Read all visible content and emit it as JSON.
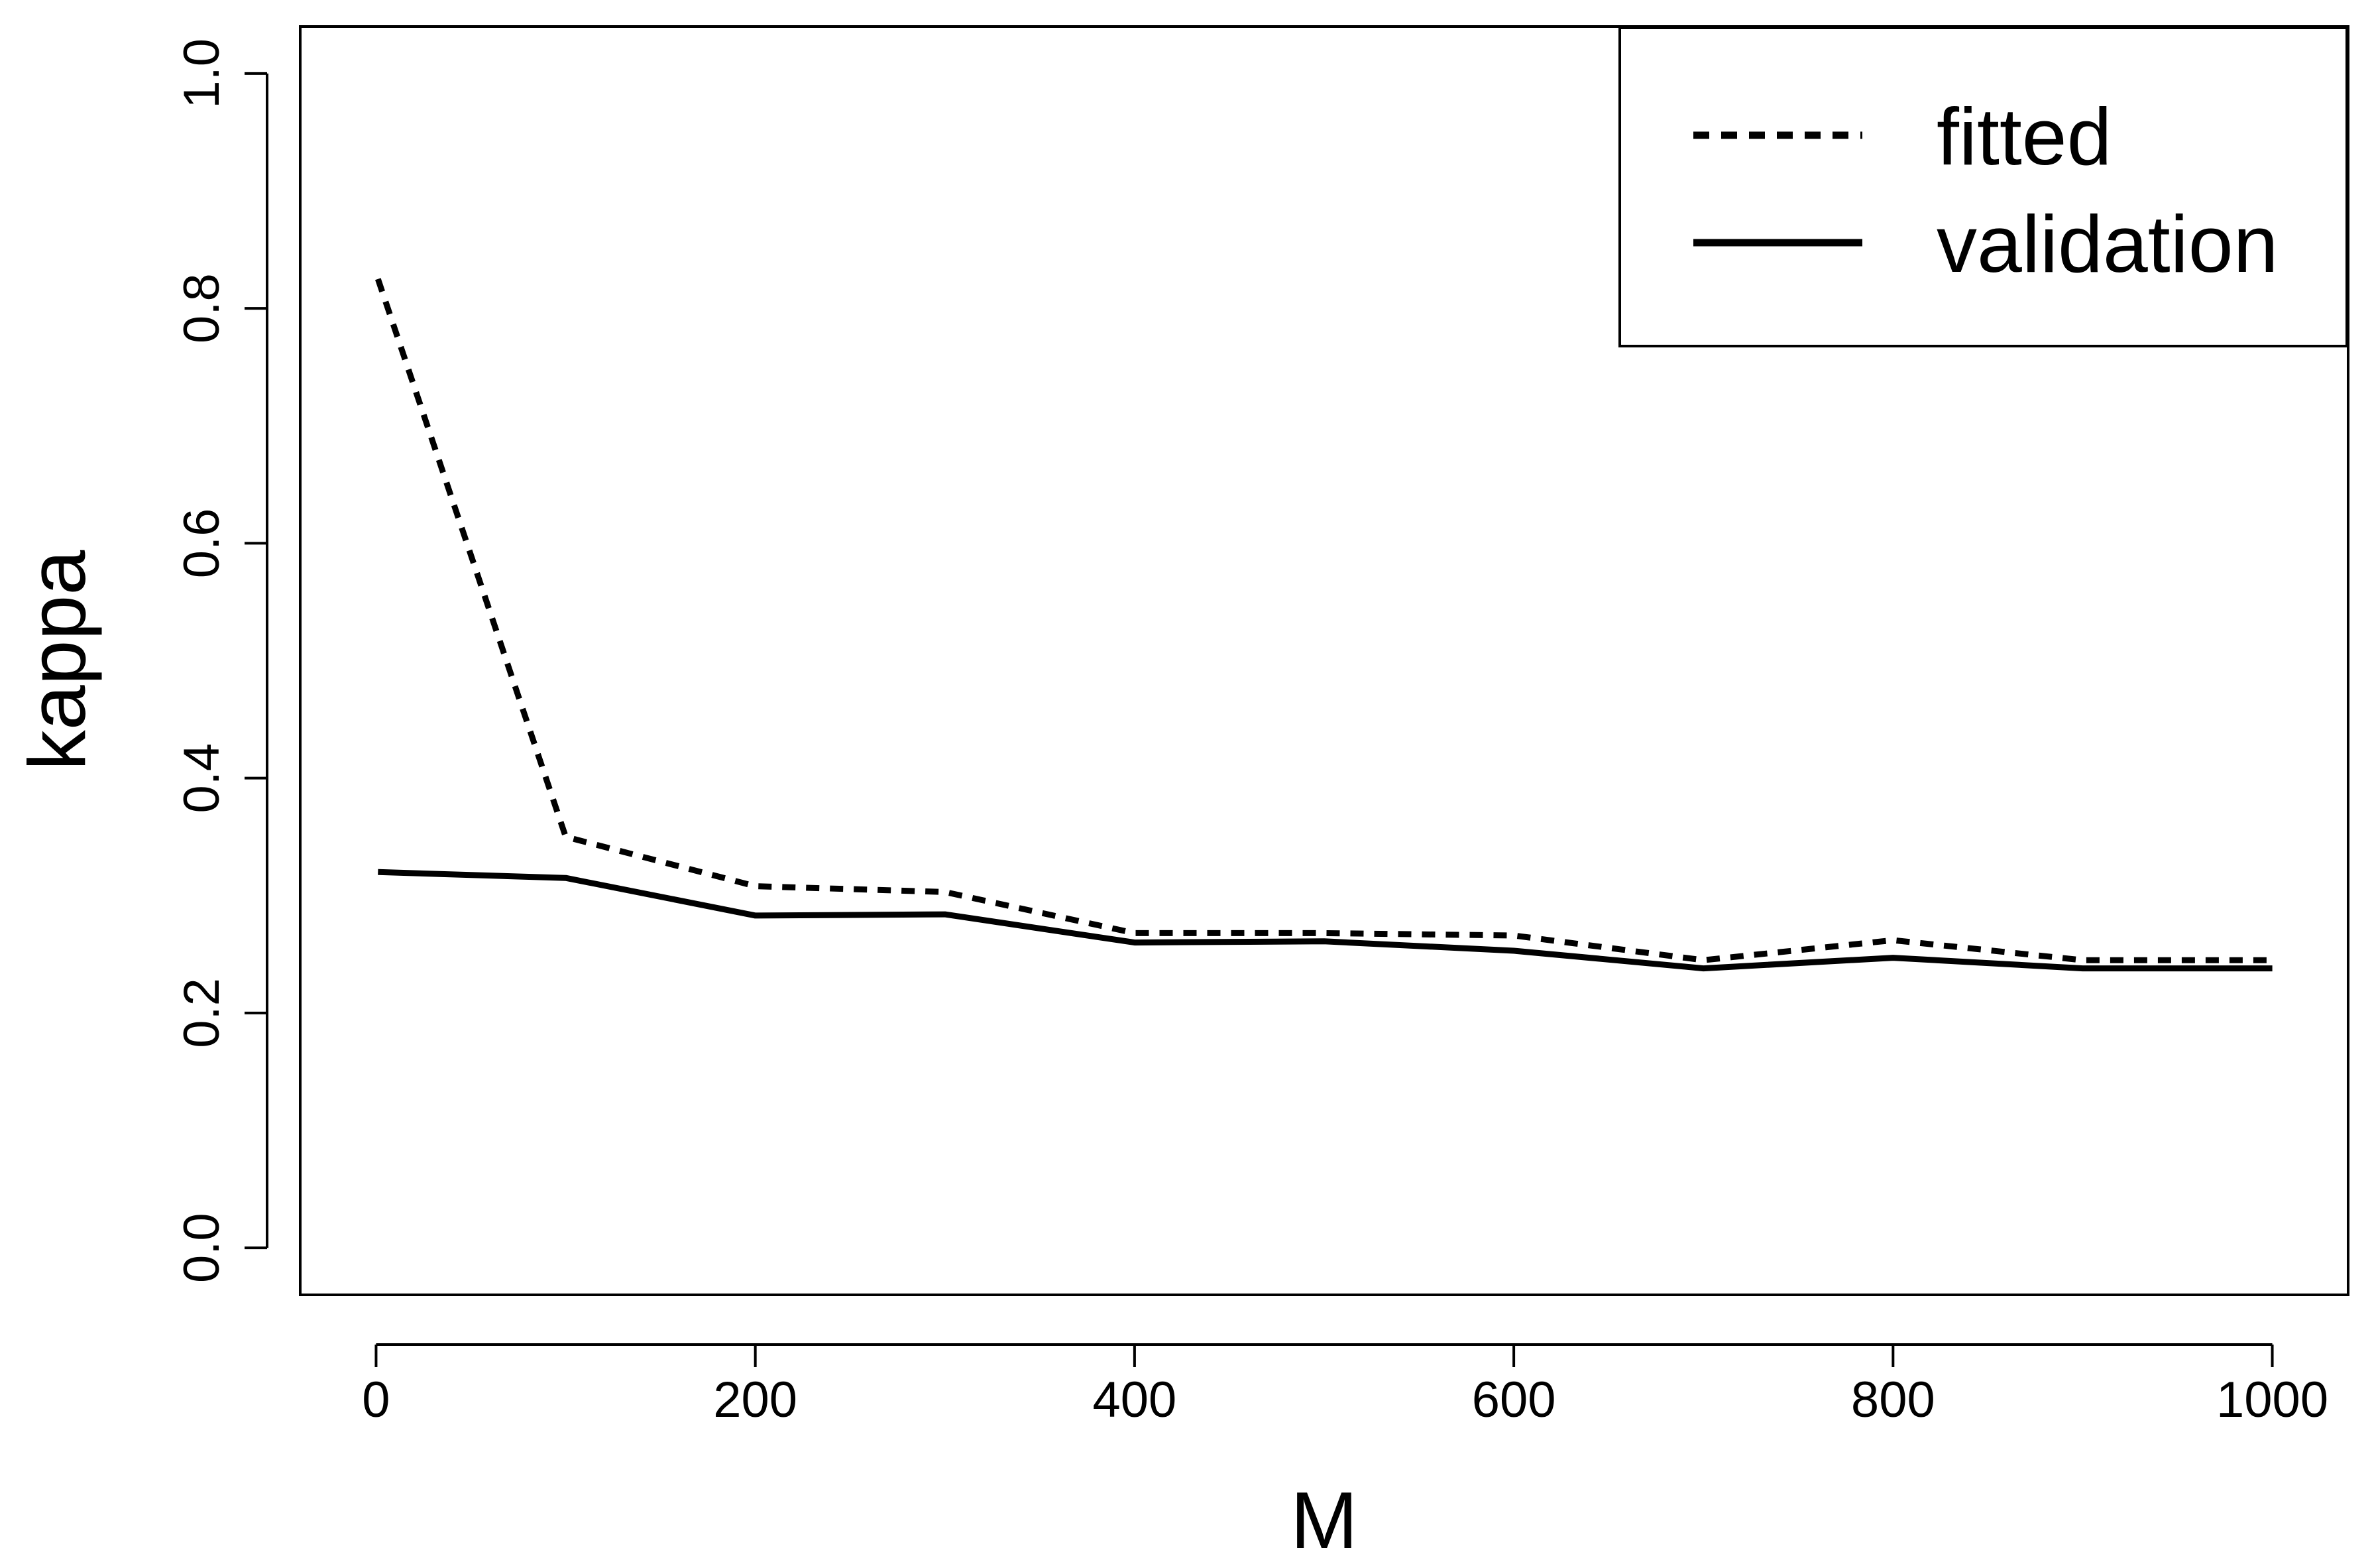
{
  "chart_data": {
    "type": "line",
    "xlabel": "M",
    "ylabel": "kappa",
    "xlim": [
      -40,
      1040
    ],
    "ylim": [
      -0.04,
      1.04
    ],
    "x_ticks": [
      0,
      200,
      400,
      600,
      800,
      1000
    ],
    "y_ticks": [
      0.0,
      0.2,
      0.4,
      0.6,
      0.8,
      1.0
    ],
    "x_tick_labels": [
      "0",
      "200",
      "400",
      "600",
      "800",
      "1000"
    ],
    "y_tick_labels": [
      "0.0",
      "0.2",
      "0.4",
      "0.6",
      "0.8",
      "1.0"
    ],
    "x": [
      1,
      100,
      200,
      300,
      400,
      500,
      600,
      700,
      800,
      900,
      1000
    ],
    "series": [
      {
        "name": "fitted",
        "style": "dotted",
        "values": [
          0.825,
          0.35,
          0.308,
          0.303,
          0.268,
          0.268,
          0.266,
          0.245,
          0.262,
          0.245,
          0.245
        ]
      },
      {
        "name": "validation",
        "style": "solid",
        "values": [
          0.32,
          0.315,
          0.283,
          0.284,
          0.26,
          0.261,
          0.253,
          0.238,
          0.247,
          0.238,
          0.238
        ]
      }
    ],
    "legend_position": "top-right",
    "grid": false,
    "line_color": "#000000"
  }
}
